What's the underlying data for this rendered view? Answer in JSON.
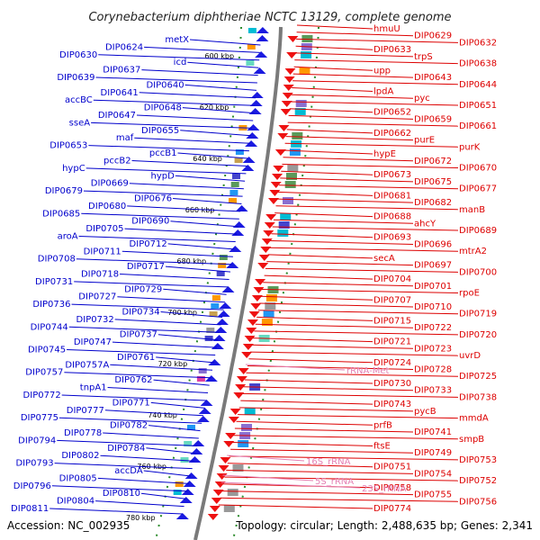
{
  "title": "Corynebacterium diphtheriae NCTC 13129, complete genome",
  "accession": "Accession: NC_002935",
  "summary": "Topology: circular; Length: 2,488,635 bp; Genes: 2,341",
  "colors": {
    "left": "#0000cc",
    "right": "#dd0000",
    "rna": "#e580b4",
    "backbone": "#7a7a7a",
    "tick": "#2a8a2a"
  },
  "ticks": [
    "600 kbp",
    "620 kbp",
    "640 kbp",
    "660 kbp",
    "680 kbp",
    "700 kbp",
    "720 kbp",
    "740 kbp",
    "760 kbp",
    "780 kbp"
  ],
  "left_labels": [
    "metX",
    "DIP0624",
    "DIP0630",
    "icd",
    "DIP0637",
    "DIP0639",
    "DIP0640",
    "DIP0641",
    "accBC",
    "DIP0648",
    "DIP0647",
    "sseA",
    "DIP0655",
    "maf",
    "DIP0653",
    "pccB1",
    "pccB2",
    "hypC",
    "hypD",
    "DIP0669",
    "DIP0679",
    "DIP0676",
    "DIP0680",
    "DIP0685",
    "DIP0690",
    "DIP0705",
    "aroA",
    "DIP0712",
    "DIP0711",
    "DIP0708",
    "DIP0717",
    "DIP0718",
    "DIP0731",
    "DIP0729",
    "DIP0727",
    "DIP0736",
    "DIP0734",
    "DIP0732",
    "DIP0744",
    "DIP0737",
    "DIP0747",
    "DIP0745",
    "DIP0761",
    "DIP0757A",
    "DIP0757",
    "DIP0762",
    "tnpA1",
    "DIP0772",
    "DIP0771",
    "DIP0777",
    "DIP0775",
    "DIP0782",
    "DIP0778",
    "DIP0794",
    "DIP0784",
    "DIP0802",
    "DIP0793",
    "accDA",
    "DIP0805",
    "DIP0796",
    "DIP0810",
    "DIP0804",
    "DIP0811"
  ],
  "right_labels": [
    "hmuU",
    "DIP0629",
    "DIP0632",
    "DIP0633",
    "trpS",
    "DIP0638",
    "upp",
    "DIP0643",
    "DIP0644",
    "lpdA",
    "pyc",
    "DIP0651",
    "DIP0652",
    "DIP0659",
    "DIP0661",
    "DIP0662",
    "purE",
    "purK",
    "hypE",
    "DIP0672",
    "DIP0670",
    "DIP0673",
    "DIP0675",
    "DIP0677",
    "DIP0681",
    "DIP0682",
    "manB",
    "DIP0688",
    "ahcY",
    "DIP0689",
    "DIP0693",
    "DIP0696",
    "mtrA2",
    "secA",
    "DIP0697",
    "DIP0700",
    "DIP0704",
    "DIP0701",
    "rpoE",
    "DIP0707",
    "DIP0710",
    "DIP0719",
    "DIP0715",
    "DIP0722",
    "DIP0720",
    "DIP0721",
    "DIP0723",
    "uvrD",
    "DIP0724",
    "DIP0728",
    "DIP0725",
    "DIP0730",
    "DIP0733",
    "DIP0738",
    "DIP0743",
    "pycB",
    "mmdA",
    "prfB",
    "DIP0741",
    "smpB",
    "ftsE",
    "DIP0749",
    "DIP0753",
    "DIP0751",
    "DIP0754",
    "DIP0752",
    "DIP0758",
    "DIP0755",
    "DIP0756",
    "DIP0774"
  ],
  "rna_labels": [
    "rRNA-Met",
    "16S_rRNA",
    "5S_rRNA",
    "23S_rRNA"
  ]
}
